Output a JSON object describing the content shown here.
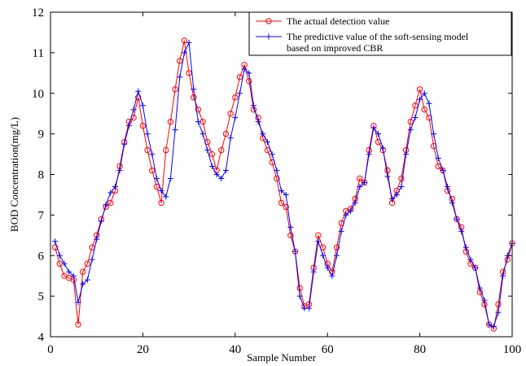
{
  "chart_data": {
    "type": "line",
    "title": "",
    "xlabel": "Sample Number",
    "ylabel": "BOD Concentration(mg/L)",
    "xlim": [
      0,
      100
    ],
    "ylim": [
      4,
      12
    ],
    "xticks": [
      0,
      20,
      40,
      60,
      80,
      100
    ],
    "yticks": [
      4,
      5,
      6,
      7,
      8,
      9,
      10,
      11,
      12
    ],
    "grid": false,
    "legend_position": "top-right",
    "x": [
      1,
      2,
      3,
      4,
      5,
      6,
      7,
      8,
      9,
      10,
      11,
      12,
      13,
      14,
      15,
      16,
      17,
      18,
      19,
      20,
      21,
      22,
      23,
      24,
      25,
      26,
      27,
      28,
      29,
      30,
      31,
      32,
      33,
      34,
      35,
      36,
      37,
      38,
      39,
      40,
      41,
      42,
      43,
      44,
      45,
      46,
      47,
      48,
      49,
      50,
      51,
      52,
      53,
      54,
      55,
      56,
      57,
      58,
      59,
      60,
      61,
      62,
      63,
      64,
      65,
      66,
      67,
      68,
      69,
      70,
      71,
      72,
      73,
      74,
      75,
      76,
      77,
      78,
      79,
      80,
      81,
      82,
      83,
      84,
      85,
      86,
      87,
      88,
      89,
      90,
      91,
      92,
      93,
      94,
      95,
      96,
      97,
      98,
      99,
      100
    ],
    "series": [
      {
        "name": "The actual detection value",
        "color": "#ff0000",
        "marker": "circle",
        "values": [
          6.2,
          5.8,
          5.5,
          5.45,
          5.4,
          4.3,
          5.6,
          5.8,
          6.2,
          6.5,
          6.9,
          7.2,
          7.3,
          7.6,
          8.2,
          8.8,
          9.3,
          9.4,
          9.9,
          9.2,
          8.6,
          8.1,
          7.7,
          7.3,
          8.6,
          9.3,
          10.1,
          10.8,
          11.3,
          10.5,
          9.9,
          9.6,
          9.3,
          8.8,
          8.5,
          8.1,
          8.6,
          9.0,
          9.5,
          9.9,
          10.4,
          10.7,
          10.3,
          9.6,
          9.4,
          8.9,
          8.6,
          8.3,
          7.9,
          7.3,
          7.2,
          6.5,
          6.1,
          5.2,
          4.75,
          4.8,
          5.7,
          6.5,
          6.2,
          5.8,
          5.6,
          6.2,
          6.8,
          7.1,
          7.15,
          7.4,
          7.9,
          7.8,
          8.6,
          9.2,
          8.8,
          8.6,
          8.1,
          7.3,
          7.6,
          7.9,
          8.6,
          9.3,
          9.7,
          10.1,
          9.6,
          9.4,
          8.7,
          8.2,
          8.1,
          7.6,
          7.4,
          6.9,
          6.7,
          6.1,
          5.8,
          5.7,
          5.1,
          4.8,
          4.3,
          4.2,
          4.8,
          5.6,
          5.9,
          6.3
        ]
      },
      {
        "name": "The predictive value of the soft-sensing model based on improved CBR",
        "color": "#0000ff",
        "marker": "plus",
        "values": [
          6.35,
          6.0,
          5.8,
          5.6,
          5.5,
          4.85,
          5.3,
          5.4,
          5.9,
          6.4,
          6.85,
          7.25,
          7.55,
          7.7,
          8.1,
          8.75,
          9.2,
          9.6,
          10.05,
          9.7,
          9.0,
          8.5,
          7.9,
          7.6,
          7.45,
          7.9,
          9.1,
          10.4,
          11.0,
          11.25,
          10.1,
          9.3,
          9.0,
          8.6,
          8.2,
          8.0,
          7.9,
          8.1,
          8.9,
          9.4,
          10.0,
          10.6,
          10.5,
          9.7,
          9.3,
          9.0,
          8.8,
          8.5,
          8.1,
          7.6,
          7.5,
          6.7,
          6.1,
          5.0,
          4.7,
          4.7,
          5.6,
          6.35,
          6.0,
          5.7,
          5.5,
          6.0,
          6.6,
          7.0,
          7.1,
          7.3,
          7.7,
          7.8,
          8.5,
          9.15,
          9.0,
          8.65,
          7.95,
          7.4,
          7.5,
          7.7,
          8.5,
          9.1,
          9.4,
          9.85,
          10.0,
          9.75,
          9.0,
          8.4,
          8.1,
          7.7,
          7.3,
          6.9,
          6.6,
          6.2,
          5.9,
          5.7,
          5.2,
          4.9,
          4.3,
          4.25,
          4.6,
          5.5,
          6.0,
          6.3
        ]
      }
    ]
  }
}
